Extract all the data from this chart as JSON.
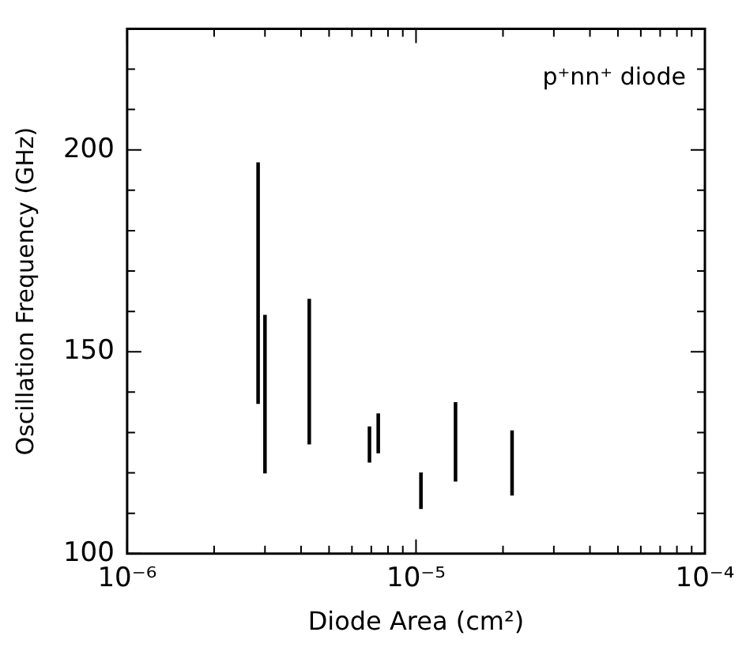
{
  "chart_data": {
    "type": "bar",
    "xlabel": "Diode Area (cm²)",
    "ylabel": "Oscillation Frequency (GHz)",
    "annotations": [
      "p⁺nn⁺ diode"
    ],
    "x": [
      2.84e-06,
      3e-06,
      4.27e-06,
      6.9e-06,
      7.4e-06,
      1.04e-05,
      1.37e-05,
      2.15e-05
    ],
    "base": [
      137.2,
      120,
      127.2,
      122.7,
      125,
      111.2,
      118,
      114.5
    ],
    "values": [
      59.6,
      39,
      35.8,
      8.7,
      9.6,
      8.8,
      19.4,
      15.9
    ],
    "color": "#000000",
    "log": "x",
    "grid": false,
    "legend": false,
    "xlim": [
      1e-06,
      0.0001
    ],
    "xticks": [
      {
        "value": 1e-06,
        "label": "10⁻⁶"
      },
      {
        "value": 2e-06,
        "label": null
      },
      {
        "value": 3e-06,
        "label": null
      },
      {
        "value": 4e-06,
        "label": null
      },
      {
        "value": 5e-06,
        "label": null
      },
      {
        "value": 6e-06,
        "label": null
      },
      {
        "value": 7e-06,
        "label": null
      },
      {
        "value": 8e-06,
        "label": null
      },
      {
        "value": 9e-06,
        "label": null
      },
      {
        "value": 1e-05,
        "label": "10⁻⁵"
      },
      {
        "value": 2e-05,
        "label": null
      },
      {
        "value": 3e-05,
        "label": null
      },
      {
        "value": 4e-05,
        "label": null
      },
      {
        "value": 5e-05,
        "label": null
      },
      {
        "value": 6e-05,
        "label": null
      },
      {
        "value": 7e-05,
        "label": null
      },
      {
        "value": 8e-05,
        "label": null
      },
      {
        "value": 9e-05,
        "label": null
      },
      {
        "value": 0.0001,
        "label": "10⁻⁴"
      }
    ],
    "ylim": [
      100,
      230
    ],
    "yticks": [
      100,
      {
        "value": 110,
        "label": null
      },
      {
        "value": 120,
        "label": null
      },
      {
        "value": 130,
        "label": null
      },
      {
        "value": 140,
        "label": null
      },
      150,
      {
        "value": 160,
        "label": null
      },
      {
        "value": 170,
        "label": null
      },
      {
        "value": 180,
        "label": null
      },
      {
        "value": 190,
        "label": null
      },
      200,
      {
        "value": 210,
        "label": null
      },
      {
        "value": 220,
        "label": null
      }
    ]
  }
}
